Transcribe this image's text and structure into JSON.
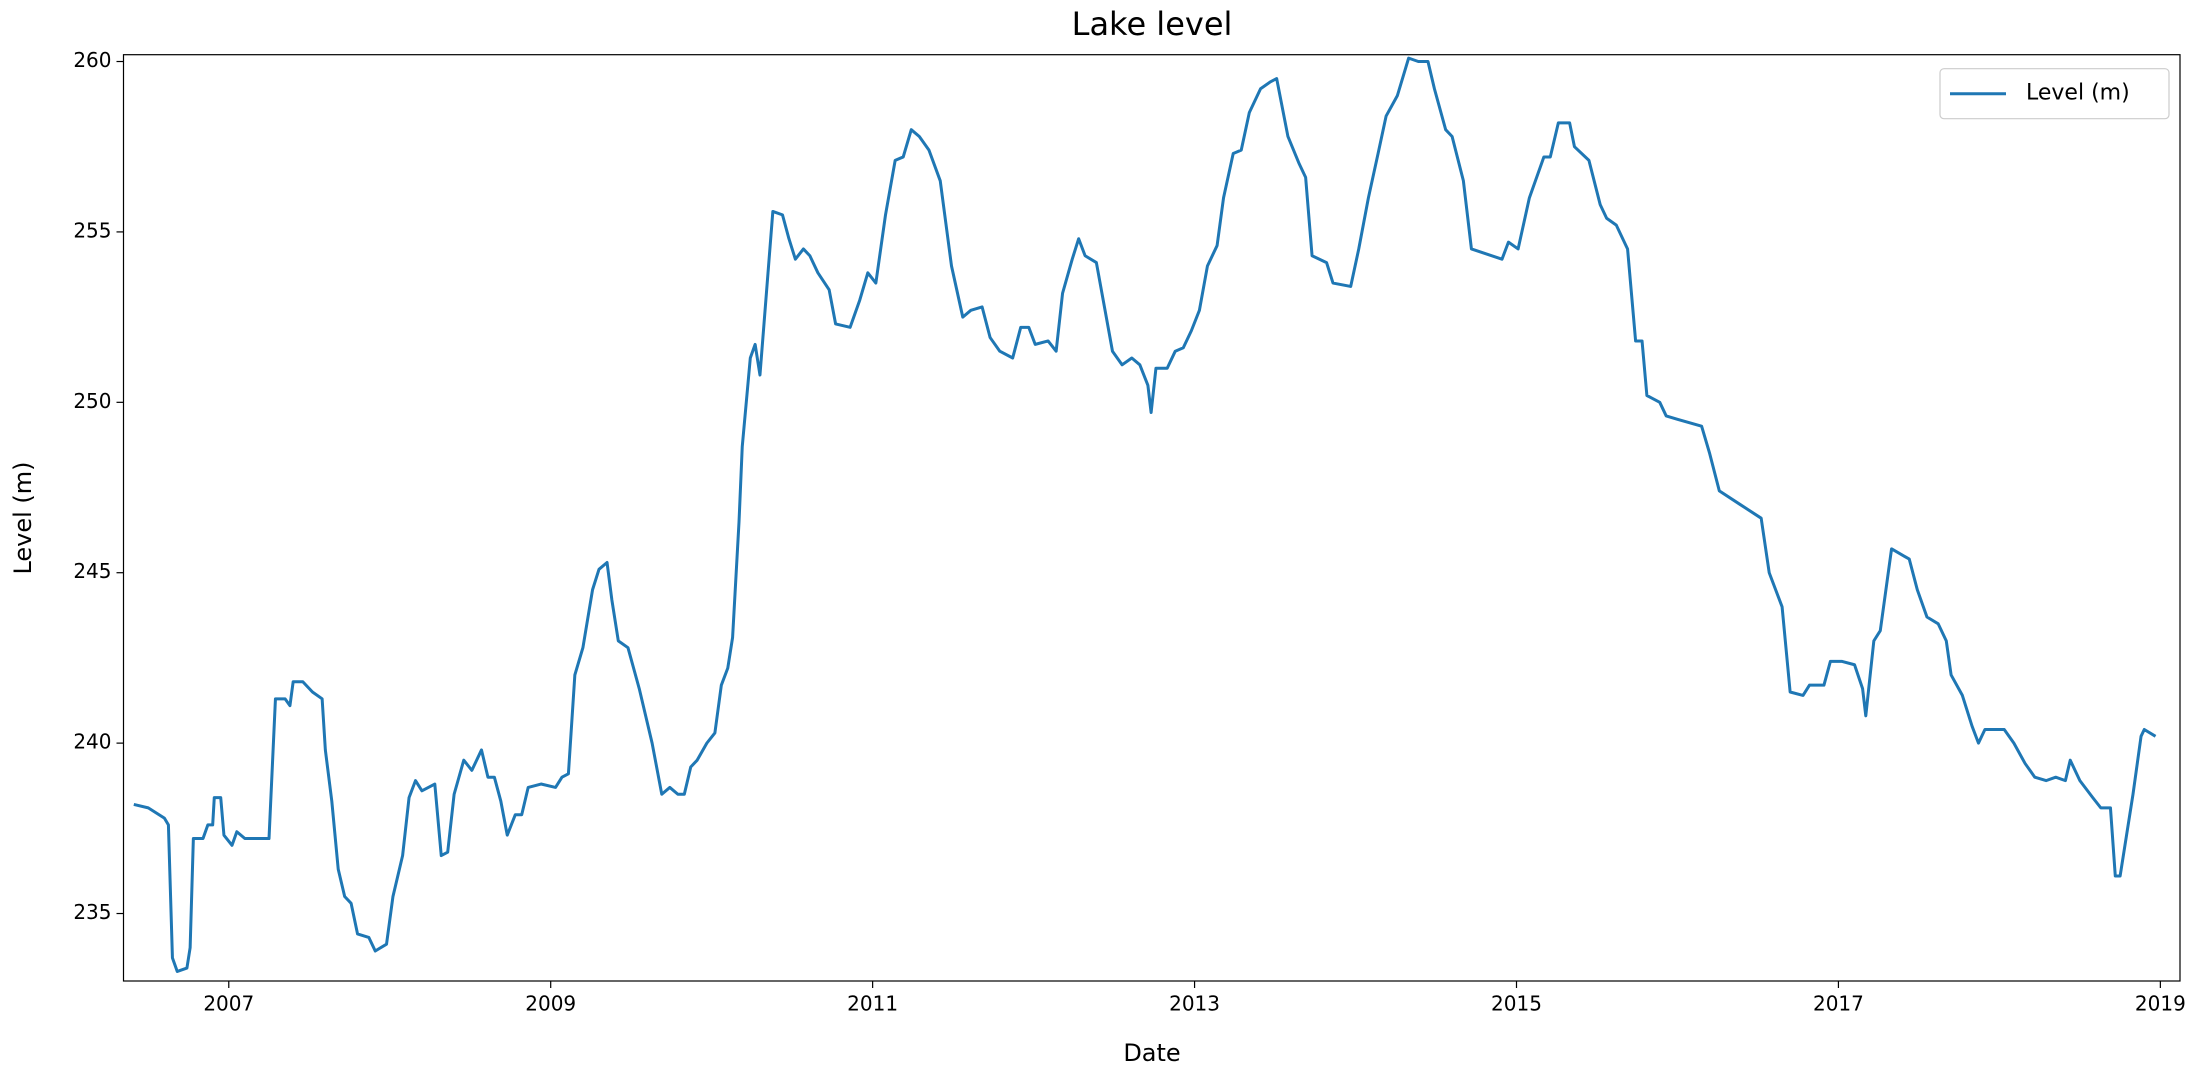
{
  "chart_data": {
    "type": "line",
    "title": "Lake level",
    "x_label": "Date",
    "y_label": "Level (m)",
    "xlim": [
      2006.346,
      2019.122
    ],
    "ylim": [
      233.02,
      260.2
    ],
    "xticks": [
      2007,
      2009,
      2011,
      2013,
      2015,
      2017,
      2019
    ],
    "yticks": [
      235,
      240,
      245,
      250,
      255,
      260
    ],
    "grid": false,
    "legend": "upper right",
    "series": [
      {
        "name": "Level (m)",
        "color": "#1f77b4",
        "x": [
          2006.41,
          2006.5,
          2006.6,
          2006.625,
          2006.65,
          2006.68,
          2006.74,
          2006.76,
          2006.78,
          2006.84,
          2006.87,
          2006.9,
          2006.91,
          2006.95,
          2006.97,
          2007.02,
          2007.05,
          2007.1,
          2007.25,
          2007.29,
          2007.35,
          2007.38,
          2007.4,
          2007.46,
          2007.52,
          2007.58,
          2007.6,
          2007.64,
          2007.68,
          2007.72,
          2007.76,
          2007.8,
          2007.87,
          2007.91,
          2007.98,
          2008.02,
          2008.08,
          2008.12,
          2008.16,
          2008.2,
          2008.28,
          2008.32,
          2008.36,
          2008.4,
          2008.46,
          2008.51,
          2008.57,
          2008.61,
          2008.65,
          2008.69,
          2008.73,
          2008.78,
          2008.82,
          2008.86,
          2008.94,
          2009.03,
          2009.07,
          2009.11,
          2009.15,
          2009.2,
          2009.26,
          2009.3,
          2009.35,
          2009.38,
          2009.42,
          2009.48,
          2009.55,
          2009.63,
          2009.69,
          2009.74,
          2009.79,
          2009.83,
          2009.87,
          2009.91,
          2009.97,
          2010.02,
          2010.06,
          2010.1,
          2010.13,
          2010.17,
          2010.19,
          2010.24,
          2010.27,
          2010.3,
          2010.34,
          2010.38,
          2010.44,
          2010.48,
          2010.52,
          2010.57,
          2010.61,
          2010.66,
          2010.73,
          2010.77,
          2010.86,
          2010.92,
          2010.97,
          2011.02,
          2011.08,
          2011.14,
          2011.19,
          2011.24,
          2011.29,
          2011.35,
          2011.42,
          2011.49,
          2011.56,
          2011.61,
          2011.68,
          2011.73,
          2011.79,
          2011.87,
          2011.92,
          2011.97,
          2012.01,
          2012.09,
          2012.14,
          2012.18,
          2012.24,
          2012.28,
          2012.32,
          2012.39,
          2012.44,
          2012.49,
          2012.55,
          2012.61,
          2012.66,
          2012.71,
          2012.73,
          2012.76,
          2012.83,
          2012.88,
          2012.93,
          2012.98,
          2013.03,
          2013.08,
          2013.14,
          2013.18,
          2013.24,
          2013.29,
          2013.34,
          2013.41,
          2013.47,
          2013.51,
          2013.58,
          2013.65,
          2013.69,
          2013.73,
          2013.82,
          2013.86,
          2013.97,
          2014.02,
          2014.08,
          2014.14,
          2014.19,
          2014.26,
          2014.33,
          2014.39,
          2014.45,
          2014.49,
          2014.56,
          2014.6,
          2014.67,
          2014.72,
          2014.91,
          2014.95,
          2015.01,
          2015.08,
          2015.17,
          2015.21,
          2015.26,
          2015.33,
          2015.36,
          2015.45,
          2015.52,
          2015.56,
          2015.62,
          2015.69,
          2015.74,
          2015.78,
          2015.81,
          2015.89,
          2015.93,
          2016.0,
          2016.15,
          2016.2,
          2016.26,
          2016.39,
          2016.52,
          2016.57,
          2016.65,
          2016.7,
          2016.78,
          2016.82,
          2016.91,
          2016.95,
          2017.02,
          2017.1,
          2017.15,
          2017.17,
          2017.22,
          2017.26,
          2017.33,
          2017.44,
          2017.49,
          2017.55,
          2017.62,
          2017.67,
          2017.7,
          2017.77,
          2017.83,
          2017.87,
          2017.91,
          2018.03,
          2018.09,
          2018.16,
          2018.22,
          2018.29,
          2018.35,
          2018.41,
          2018.44,
          2018.5,
          2018.58,
          2018.63,
          2018.69,
          2018.72,
          2018.75,
          2018.79,
          2018.83,
          2018.88,
          2018.9,
          2018.97
        ],
        "values": [
          238.2,
          238.1,
          237.8,
          237.6,
          233.7,
          233.3,
          233.4,
          234.0,
          237.2,
          237.2,
          237.6,
          237.6,
          238.4,
          238.4,
          237.3,
          237.0,
          237.4,
          237.2,
          237.2,
          241.3,
          241.3,
          241.1,
          241.8,
          241.8,
          241.5,
          241.3,
          239.8,
          238.3,
          236.3,
          235.5,
          235.3,
          234.4,
          234.3,
          233.9,
          234.1,
          235.5,
          236.7,
          238.4,
          238.9,
          238.6,
          238.8,
          236.7,
          236.8,
          238.5,
          239.5,
          239.2,
          239.8,
          239.0,
          239.0,
          238.3,
          237.3,
          237.9,
          237.9,
          238.7,
          238.8,
          238.7,
          239.0,
          239.1,
          242.0,
          242.8,
          244.5,
          245.1,
          245.3,
          244.2,
          243.0,
          242.8,
          241.6,
          240.0,
          238.5,
          238.7,
          238.5,
          238.5,
          239.3,
          239.5,
          240.0,
          240.3,
          241.7,
          242.2,
          243.1,
          246.5,
          248.7,
          251.3,
          251.7,
          250.8,
          253.2,
          255.6,
          255.5,
          254.8,
          254.2,
          254.5,
          254.3,
          253.8,
          253.3,
          252.3,
          252.2,
          253.0,
          253.8,
          253.5,
          255.5,
          257.1,
          257.2,
          258.0,
          257.8,
          257.4,
          256.5,
          254.0,
          252.5,
          252.7,
          252.8,
          251.9,
          251.5,
          251.3,
          252.2,
          252.2,
          251.7,
          251.8,
          251.5,
          253.2,
          254.2,
          254.8,
          254.3,
          254.1,
          252.8,
          251.5,
          251.1,
          251.3,
          251.1,
          250.5,
          249.7,
          251.0,
          251.0,
          251.5,
          251.6,
          252.1,
          252.7,
          254.0,
          254.6,
          256.0,
          257.3,
          257.4,
          258.5,
          259.2,
          259.4,
          259.5,
          257.8,
          257.0,
          256.6,
          254.3,
          254.1,
          253.5,
          253.4,
          254.5,
          256.0,
          257.3,
          258.4,
          259.0,
          260.1,
          260.0,
          260.0,
          259.2,
          258.0,
          257.8,
          256.5,
          254.5,
          254.2,
          254.7,
          254.5,
          256.0,
          257.2,
          257.2,
          258.2,
          258.2,
          257.5,
          257.1,
          255.8,
          255.4,
          255.2,
          254.5,
          251.8,
          251.8,
          250.2,
          250.0,
          249.6,
          249.5,
          249.3,
          248.5,
          247.4,
          247.0,
          246.6,
          245.0,
          244.0,
          241.5,
          241.4,
          241.7,
          241.7,
          242.4,
          242.4,
          242.3,
          241.6,
          240.8,
          243.0,
          243.3,
          245.7,
          245.4,
          244.5,
          243.7,
          243.5,
          243.0,
          242.0,
          241.4,
          240.5,
          240.0,
          240.4,
          240.4,
          240.0,
          239.4,
          239.0,
          238.9,
          239.0,
          238.9,
          239.5,
          238.9,
          238.4,
          238.1,
          238.1,
          236.1,
          236.1,
          237.3,
          238.5,
          240.2,
          240.4,
          240.2
        ]
      }
    ]
  }
}
